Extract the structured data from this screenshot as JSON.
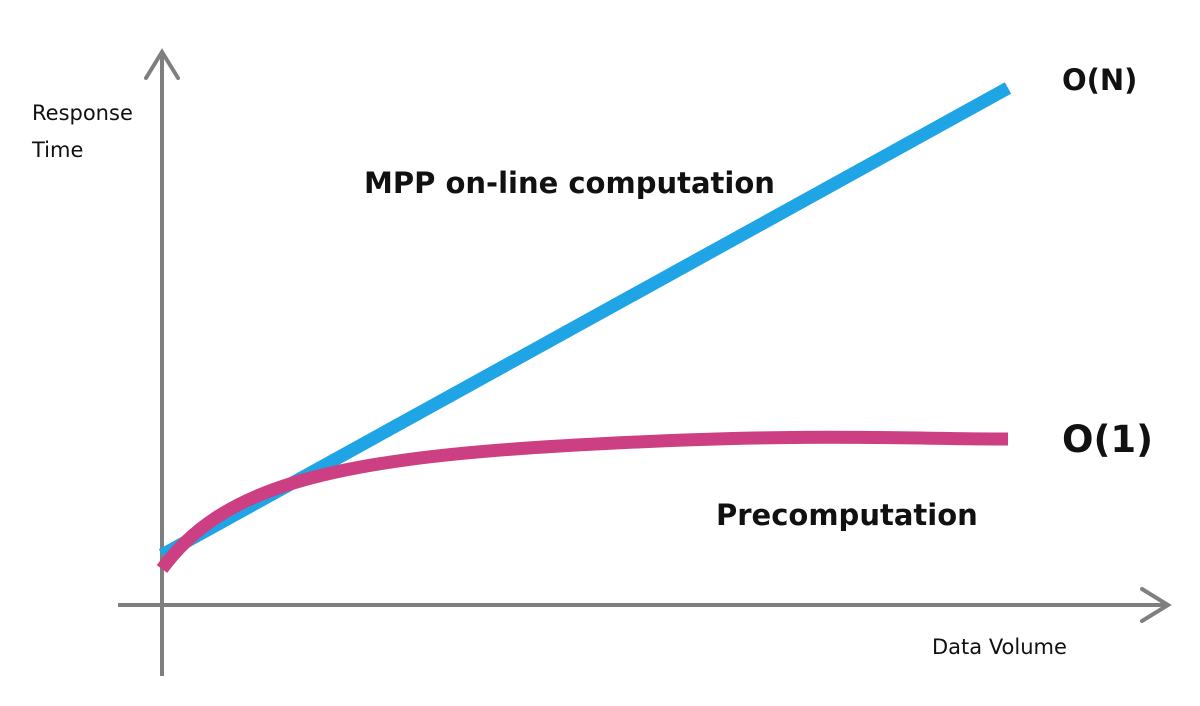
{
  "axes": {
    "y_label": {
      "line1": "Response",
      "line2": "Time"
    },
    "x_label": "Data Volume"
  },
  "curves": {
    "mpp": {
      "label": "MPP on-line computation",
      "complexity": "O(N)"
    },
    "precomputation": {
      "label": "Precomputation",
      "complexity": "O(1)"
    }
  }
}
